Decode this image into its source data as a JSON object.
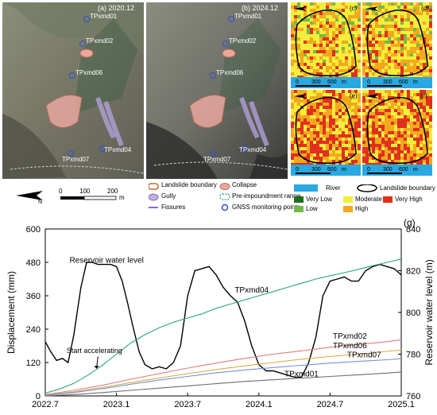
{
  "panels": {
    "a": {
      "label": "(a) 2020.12"
    },
    "b": {
      "label": "(b) 2024.12"
    },
    "c": {
      "label": "(c)"
    },
    "d": {
      "label": "(d)"
    },
    "e": {
      "label": "(e)"
    },
    "f": {
      "label": "(f)"
    },
    "g": {
      "label": "(g)"
    }
  },
  "stations": [
    "TPxmd01",
    "TPxmd02",
    "TPxmd06",
    "TPxmd04",
    "TPxmd07"
  ],
  "scale_bar": {
    "ticks": [
      "0",
      "100",
      "200"
    ],
    "unit": "m"
  },
  "mini_scale": {
    "ticks": [
      "0",
      "300",
      "600"
    ],
    "unit": "m"
  },
  "legend_map": {
    "landslide_boundary": "Landslide boundary",
    "collapse": "Collapse",
    "gully": "Gully",
    "pre_impoundment": "Pre-impoundment range",
    "fissures": "Fissures",
    "gnss": "GNSS monitoring points"
  },
  "legend_raster": {
    "river": "River",
    "landslide_boundary": "Landslide boundary",
    "very_low": "Very Low",
    "low": "Low",
    "moderate": "Moderate",
    "high": "High",
    "very_high": "Very High"
  },
  "colors": {
    "river": "#2aa8e0",
    "very_low": "#1f6e1f",
    "low": "#74b84a",
    "moderate": "#f2ee3a",
    "high": "#f2a91e",
    "very_high": "#e0301e",
    "reservoir": "#000000",
    "TPxmd04": "#2aa878",
    "TPxmd02": "#e07a7a",
    "TPxmd06": "#d4b04a",
    "TPxmd07": "#7a8fd4",
    "TPxmd01": "#6e6e6e"
  },
  "chart_data": {
    "type": "line",
    "title": "",
    "xlabel": "",
    "ylabel": "Displacement (mm)",
    "y2label": "Reservoir water level (m)",
    "x_ticks": [
      "2022.7",
      "2023.1",
      "2023.7",
      "2024.1",
      "2024.7",
      "2025.1"
    ],
    "xlim": [
      2022.5,
      2025.0
    ],
    "ylim": [
      0,
      600
    ],
    "y_ticks": [
      "0",
      "120",
      "240",
      "360",
      "480",
      "600"
    ],
    "y2lim": [
      760,
      840
    ],
    "y2_ticks": [
      "760",
      "780",
      "800",
      "820",
      "840"
    ],
    "annotations": {
      "start": "Start accelerating",
      "reservoir": "Reservoir water level"
    },
    "series": [
      {
        "name": "Reservoir water level",
        "axis": "right",
        "x": [
          2022.5,
          2022.54,
          2022.58,
          2022.62,
          2022.66,
          2022.7,
          2022.75,
          2022.79,
          2022.83,
          2022.87,
          2022.92,
          2022.96,
          2023.0,
          2023.04,
          2023.08,
          2023.12,
          2023.16,
          2023.2,
          2023.25,
          2023.3,
          2023.35,
          2023.4,
          2023.45,
          2023.5,
          2023.55,
          2023.6,
          2023.65,
          2023.7,
          2023.75,
          2023.8,
          2023.85,
          2023.9,
          2023.95,
          2024.0,
          2024.05,
          2024.1,
          2024.15,
          2024.2,
          2024.25,
          2024.3,
          2024.35,
          2024.4,
          2024.45,
          2024.5,
          2024.55,
          2024.6,
          2024.65,
          2024.7,
          2024.75,
          2024.8,
          2024.85,
          2024.9,
          2024.95,
          2025.0
        ],
        "values": [
          786,
          781,
          777,
          778,
          776,
          789,
          812,
          824,
          824,
          823,
          823,
          823,
          822,
          815,
          804,
          792,
          781,
          775,
          773,
          774,
          773,
          776,
          784,
          808,
          820,
          821,
          822,
          818,
          812,
          808,
          805,
          796,
          784,
          775,
          772,
          772,
          771,
          770,
          769,
          769,
          776,
          788,
          808,
          815,
          816,
          817,
          815,
          815,
          820,
          822,
          823,
          822,
          821,
          818
        ]
      },
      {
        "name": "TPxmd04",
        "axis": "left",
        "x": [
          2022.5,
          2022.6,
          2022.7,
          2022.8,
          2022.9,
          2023.0,
          2023.1,
          2023.2,
          2023.3,
          2023.4,
          2023.5,
          2023.6,
          2023.7,
          2023.8,
          2023.9,
          2024.0,
          2024.1,
          2024.2,
          2024.3,
          2024.4,
          2024.5,
          2024.6,
          2024.7,
          2024.8,
          2024.9,
          2025.0
        ],
        "values": [
          10,
          25,
          45,
          75,
          110,
          150,
          190,
          220,
          245,
          265,
          280,
          295,
          315,
          330,
          345,
          360,
          375,
          390,
          405,
          420,
          432,
          443,
          455,
          468,
          480,
          492
        ]
      },
      {
        "name": "TPxmd02",
        "axis": "left",
        "x": [
          2022.5,
          2022.7,
          2022.9,
          2023.1,
          2023.3,
          2023.5,
          2023.7,
          2023.9,
          2024.1,
          2024.3,
          2024.5,
          2024.7,
          2024.9,
          2025.0
        ],
        "values": [
          5,
          20,
          38,
          60,
          80,
          100,
          118,
          135,
          150,
          162,
          175,
          185,
          195,
          202
        ]
      },
      {
        "name": "TPxmd06",
        "axis": "left",
        "x": [
          2022.5,
          2022.7,
          2022.9,
          2023.1,
          2023.3,
          2023.5,
          2023.7,
          2023.9,
          2024.1,
          2024.3,
          2024.5,
          2024.7,
          2024.9,
          2025.0
        ],
        "values": [
          3,
          15,
          30,
          48,
          64,
          80,
          95,
          108,
          120,
          132,
          142,
          150,
          160,
          165
        ]
      },
      {
        "name": "TPxmd07",
        "axis": "left",
        "x": [
          2022.5,
          2022.7,
          2022.9,
          2023.1,
          2023.3,
          2023.5,
          2023.7,
          2023.9,
          2024.1,
          2024.3,
          2024.5,
          2024.7,
          2024.9,
          2025.0
        ],
        "values": [
          2,
          12,
          26,
          42,
          57,
          70,
          83,
          93,
          102,
          110,
          118,
          124,
          130,
          134
        ]
      },
      {
        "name": "TPxmd01",
        "axis": "left",
        "x": [
          2022.5,
          2022.7,
          2022.9,
          2023.1,
          2023.3,
          2023.5,
          2023.7,
          2023.9,
          2024.1,
          2024.3,
          2024.5,
          2024.7,
          2024.9,
          2025.0
        ],
        "values": [
          0,
          5,
          12,
          20,
          28,
          36,
          44,
          52,
          58,
          64,
          70,
          76,
          82,
          86
        ]
      }
    ]
  }
}
